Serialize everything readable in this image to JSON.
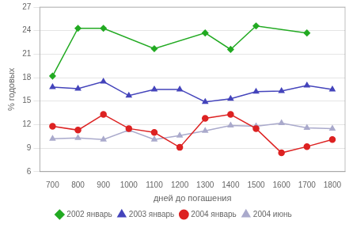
{
  "chart_data": {
    "type": "line",
    "xlabel": "дней до погашения",
    "ylabel": "% годовых",
    "xlim": [
      650,
      1850
    ],
    "ylim": [
      6,
      27
    ],
    "xticks": [
      700,
      800,
      900,
      1000,
      1100,
      1200,
      1300,
      1400,
      1500,
      1600,
      1700,
      1800
    ],
    "yticks": [
      6,
      9,
      12,
      15,
      18,
      21,
      24,
      27
    ],
    "grid": "y",
    "legend": "bottom",
    "series": [
      {
        "name": "2002 январь",
        "color": "#22aa22",
        "marker": "diamond",
        "line_style": "solid",
        "x": [
          700,
          800,
          900,
          1100,
          1300,
          1400,
          1500,
          1700
        ],
        "values": [
          18.2,
          24.3,
          24.3,
          21.7,
          23.7,
          21.6,
          24.6,
          23.7
        ]
      },
      {
        "name": "2003 январь",
        "color": "#4444bb",
        "marker": "triangle",
        "line_style": "solid",
        "x": [
          700,
          800,
          900,
          1000,
          1100,
          1200,
          1300,
          1400,
          1500,
          1600,
          1700,
          1800
        ],
        "values": [
          16.8,
          16.6,
          17.5,
          15.7,
          16.5,
          16.5,
          14.9,
          15.3,
          16.2,
          16.3,
          17.0,
          16.5
        ]
      },
      {
        "name": "2004 январь",
        "color": "#dd2222",
        "marker": "circle",
        "line_style": "solid",
        "x": [
          700,
          800,
          900,
          1000,
          1100,
          1200,
          1300,
          1400,
          1500,
          1600,
          1700,
          1800
        ],
        "values": [
          11.8,
          11.3,
          13.3,
          11.5,
          11.0,
          9.1,
          12.8,
          13.3,
          11.5,
          8.4,
          9.2,
          10.1
        ]
      },
      {
        "name": "2004 июнь",
        "color": "#aaaacc",
        "marker": "triangle",
        "line_style": "solid",
        "x": [
          700,
          800,
          900,
          1000,
          1100,
          1200,
          1300,
          1400,
          1500,
          1600,
          1700,
          1800
        ],
        "values": [
          10.2,
          10.3,
          10.1,
          11.3,
          10.1,
          10.6,
          11.2,
          11.9,
          11.8,
          12.2,
          11.6,
          11.5
        ]
      }
    ]
  }
}
